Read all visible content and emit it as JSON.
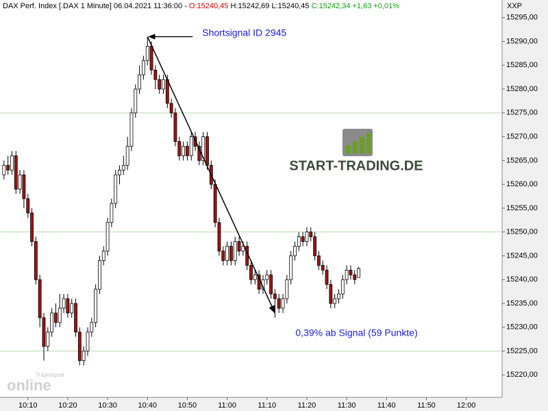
{
  "chart_data": {
    "type": "candlestick",
    "header": {
      "title": "DAX Perf. Index [.DAX  1 Minute] 06.04.2021 11:36:00 -",
      "open": "O:15240,45",
      "high": "H:15242,69",
      "low": "L:15240,45",
      "close": "C:15242,34 +1,63 +0,01%"
    },
    "axis_label": "XXP",
    "x": [
      "10:04",
      "10:05",
      "10:06",
      "10:07",
      "10:08",
      "10:09",
      "10:10",
      "10:11",
      "10:12",
      "10:13",
      "10:14",
      "10:15",
      "10:16",
      "10:17",
      "10:18",
      "10:19",
      "10:20",
      "10:21",
      "10:22",
      "10:23",
      "10:24",
      "10:25",
      "10:26",
      "10:27",
      "10:28",
      "10:29",
      "10:30",
      "10:31",
      "10:32",
      "10:33",
      "10:34",
      "10:35",
      "10:36",
      "10:37",
      "10:38",
      "10:39",
      "10:40",
      "10:41",
      "10:42",
      "10:43",
      "10:44",
      "10:45",
      "10:46",
      "10:47",
      "10:48",
      "10:49",
      "10:50",
      "10:51",
      "10:52",
      "10:53",
      "10:54",
      "10:55",
      "10:56",
      "10:57",
      "10:58",
      "10:59",
      "11:00",
      "11:01",
      "11:02",
      "11:03",
      "11:04",
      "11:05",
      "11:06",
      "11:07",
      "11:08",
      "11:09",
      "11:10",
      "11:11",
      "11:12",
      "11:13",
      "11:14",
      "11:15",
      "11:16",
      "11:17",
      "11:18",
      "11:19",
      "11:20",
      "11:21",
      "11:22",
      "11:23",
      "11:24",
      "11:25",
      "11:26",
      "11:27",
      "11:28",
      "11:29",
      "11:30",
      "11:31",
      "11:32",
      "11:33"
    ],
    "open": [
      15262,
      15264,
      15263,
      15266,
      15259,
      15262,
      15257,
      15254,
      15248,
      15240,
      15232,
      15226,
      15229,
      15233,
      15231,
      15234,
      15236,
      15233,
      15235,
      15229,
      15223,
      15225,
      15229,
      15231,
      15238,
      15244,
      15246,
      15252,
      15256,
      15262,
      15263,
      15264,
      15268,
      15275,
      15280,
      15283,
      15286,
      15289,
      15284,
      15282,
      15280,
      15282,
      15277,
      15275,
      15269,
      15266,
      15268,
      15266,
      15270,
      15268,
      15265,
      15270,
      15264,
      15260,
      15252,
      15246,
      15244,
      15247,
      15244,
      15248,
      15246,
      15247,
      15243,
      15240,
      15241,
      15238,
      15240,
      15241,
      15237,
      15236,
      15234,
      15236,
      15240,
      15245,
      15247,
      15249,
      15248,
      15250,
      15249,
      15245,
      15243,
      15242,
      15239,
      15235,
      15236,
      15237,
      15240,
      15242,
      15241,
      15240.45
    ],
    "high": [
      15265,
      15266,
      15267,
      15267,
      15263,
      15263,
      15258,
      15255,
      15249,
      15241,
      15233,
      15230,
      15234,
      15235,
      15237,
      15237,
      15237,
      15236,
      15236,
      15230,
      15226,
      15230,
      15232,
      15239,
      15245,
      15247,
      15253,
      15257,
      15263,
      15264,
      15266,
      15270,
      15276,
      15281,
      15285,
      15287,
      15291,
      15290,
      15285,
      15283,
      15283,
      15283,
      15278,
      15276,
      15270,
      15269,
      15269,
      15271,
      15271,
      15269,
      15271,
      15271,
      15265,
      15261,
      15253,
      15247,
      15248,
      15248,
      15249,
      15249,
      15248,
      15248,
      15244,
      15242,
      15242,
      15241,
      15242,
      15242,
      15238,
      15237,
      15237,
      15241,
      15246,
      15248,
      15250,
      15250,
      15251,
      15251,
      15250,
      15246,
      15244,
      15243,
      15240,
      15237,
      15238,
      15241,
      15243,
      15243,
      15242,
      15242.69
    ],
    "low": [
      15261,
      15262,
      15262,
      15258,
      15258,
      15255,
      15253,
      15247,
      15239,
      15230,
      15223,
      15225,
      15228,
      15230,
      15230,
      15233,
      15232,
      15232,
      15228,
      15222,
      15222,
      15224,
      15228,
      15230,
      15237,
      15243,
      15245,
      15251,
      15255,
      15260,
      15262,
      15263,
      15267,
      15274,
      15279,
      15282,
      15285,
      15283,
      15280,
      15279,
      15279,
      15276,
      15274,
      15268,
      15265,
      15265,
      15265,
      15265,
      15267,
      15264,
      15264,
      15263,
      15259,
      15251,
      15245,
      15243,
      15243,
      15243,
      15243,
      15245,
      15245,
      15242,
      15239,
      15239,
      15237,
      15237,
      15239,
      15236,
      15232,
      15233,
      15233,
      15235,
      15239,
      15244,
      15246,
      15247,
      15247,
      15248,
      15244,
      15242,
      15241,
      15238,
      15234,
      15234,
      15235,
      15236,
      15239,
      15240,
      15239,
      15240.45
    ],
    "close": [
      15264,
      15263,
      15266,
      15259,
      15262,
      15257,
      15254,
      15248,
      15240,
      15232,
      15226,
      15229,
      15233,
      15231,
      15234,
      15236,
      15233,
      15235,
      15229,
      15223,
      15225,
      15229,
      15231,
      15238,
      15244,
      15246,
      15252,
      15256,
      15262,
      15263,
      15264,
      15268,
      15275,
      15280,
      15283,
      15286,
      15289,
      15284,
      15282,
      15280,
      15282,
      15277,
      15275,
      15269,
      15266,
      15268,
      15266,
      15270,
      15268,
      15265,
      15270,
      15264,
      15260,
      15252,
      15246,
      15244,
      15247,
      15244,
      15248,
      15246,
      15247,
      15243,
      15240,
      15241,
      15238,
      15240,
      15241,
      15237,
      15236,
      15234,
      15236,
      15240,
      15245,
      15247,
      15249,
      15248,
      15250,
      15249,
      15245,
      15243,
      15242,
      15239,
      15235,
      15236,
      15237,
      15240,
      15242,
      15241,
      15240,
      15242.34
    ],
    "up_color": "#ffffff",
    "down_color": "#a01414",
    "xlim": [
      "10:03",
      "12:09"
    ],
    "ylim": [
      15215.3,
      15298.7
    ],
    "xticks": [
      "10:10",
      "10:20",
      "10:30",
      "10:40",
      "10:50",
      "11:00",
      "11:10",
      "11:20",
      "11:30",
      "11:40",
      "11:50",
      "12:00"
    ],
    "yticks": [
      {
        "value": 15220,
        "label": "15220,00"
      },
      {
        "value": 15225,
        "label": "15225,00"
      },
      {
        "value": 15230,
        "label": "15230,00"
      },
      {
        "value": 15235,
        "label": "15235,00"
      },
      {
        "value": 15240,
        "label": "15240,00"
      },
      {
        "value": 15245,
        "label": "15245,00"
      },
      {
        "value": 15250,
        "label": "15250,00"
      },
      {
        "value": 15255,
        "label": "15255,00"
      },
      {
        "value": 15260,
        "label": "15260,00"
      },
      {
        "value": 15265,
        "label": "15265,00"
      },
      {
        "value": 15270,
        "label": "15270,00"
      },
      {
        "value": 15275,
        "label": "15275,00"
      },
      {
        "value": 15280,
        "label": "15280,00"
      },
      {
        "value": 15285,
        "label": "15285,00"
      },
      {
        "value": 15290,
        "label": "15290,00"
      },
      {
        "value": 15295,
        "label": "15295,00"
      }
    ],
    "grid_lines": [
      15225,
      15250,
      15275
    ],
    "signal": {
      "label": "Shortsignal ID 2945",
      "x": "10:40",
      "y": 15291
    },
    "result": {
      "label": "0,39% ab Signal (59 Punkte)",
      "x": "11:12",
      "y": 15233
    },
    "logo": "START-TRADING.DE",
    "watermark": {
      "brand": "Tradesignal",
      "word": "online"
    }
  }
}
